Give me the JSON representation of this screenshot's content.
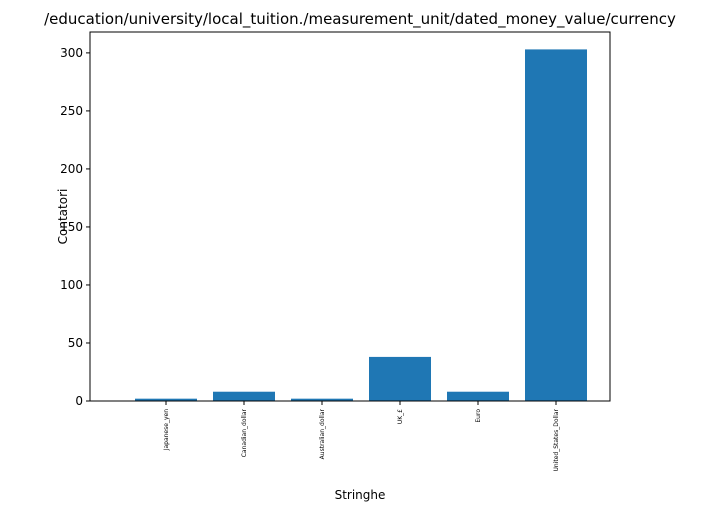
{
  "chart_data": {
    "type": "bar",
    "title": "/education/university/local_tuition./measurement_unit/dated_money_value/currency",
    "xlabel": "Stringhe",
    "ylabel": "Contatori",
    "categories": [
      "Japanese_yen",
      "Canadian_dollar",
      "Australian_dollar",
      "UK_£",
      "Euro",
      "United_States_Dollar"
    ],
    "values": [
      2,
      8,
      2,
      38,
      8,
      303
    ],
    "ylim": [
      0,
      318
    ],
    "yticks": [
      0,
      50,
      100,
      150,
      200,
      250,
      300
    ],
    "ytick_labels": [
      "0",
      "50",
      "100",
      "150",
      "200",
      "250",
      "300"
    ],
    "grid": false,
    "legend": "none",
    "bar_color": "#1f77b4"
  }
}
